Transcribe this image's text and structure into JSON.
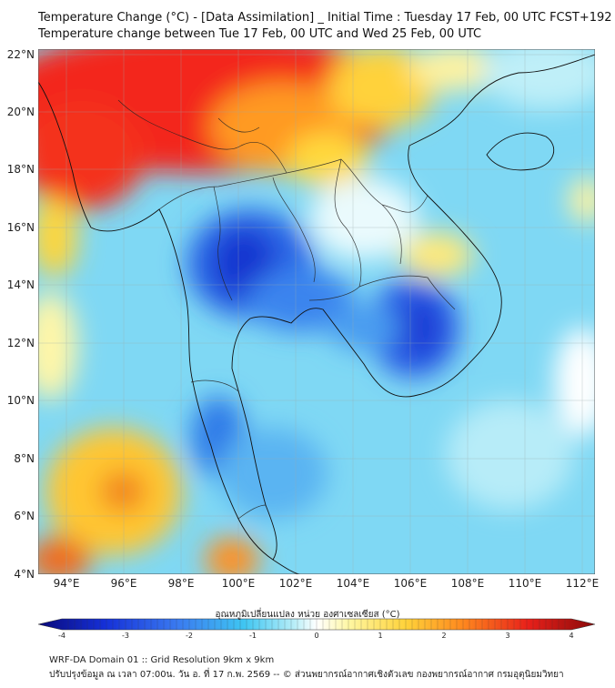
{
  "header": {
    "title_line1": "Temperature Change (°C) - [Data Assimilation] _ Initial Time : Tuesday 17 Feb, 00 UTC FCST+192",
    "title_line2": "Temperature change between Tue 17 Feb, 00 UTC and Wed 25 Feb, 00 UTC"
  },
  "map": {
    "lon_ticks": [
      "94°E",
      "96°E",
      "98°E",
      "100°E",
      "102°E",
      "104°E",
      "106°E",
      "108°E",
      "110°E",
      "112°E"
    ],
    "lat_ticks": [
      "22°N",
      "20°N",
      "18°N",
      "16°N",
      "14°N",
      "12°N",
      "10°N",
      "8°N",
      "6°N",
      "4°N"
    ],
    "lon_values": [
      94,
      96,
      98,
      100,
      102,
      104,
      106,
      108,
      110,
      112
    ],
    "lat_values": [
      22,
      20,
      18,
      16,
      14,
      12,
      10,
      8,
      6,
      4
    ],
    "lon_range": [
      93,
      112.5
    ],
    "lat_range": [
      4,
      22.2
    ]
  },
  "colorbar": {
    "title": "อุณหภูมิเปลี่ยนแปลง หน่วย องศาเซลเซียส (°C)",
    "labels": [
      "-4",
      "-3",
      "-2",
      "-1",
      "0",
      "1",
      "2",
      "3",
      "4"
    ],
    "min": -4,
    "max": 4,
    "colors": [
      "#0a0a7a",
      "#1530d8",
      "#3a7af0",
      "#3fc6f2",
      "#9ee6f6",
      "#ffffff",
      "#fff6a0",
      "#ffd23a",
      "#ff8a1e",
      "#e8201a",
      "#8a0a0a"
    ]
  },
  "footer": {
    "line1": "WRF-DA Domain 01 :: Grid Resolution 9km x 9km",
    "line2": "ปรับปรุงข้อมูล ณ เวลา 07:00น. วัน อ. ที่ 17 ก.พ. 2569 -- © ส่วนพยากรณ์อากาศเชิงตัวเลข กองพยากรณ์อากาศ กรมอุตุนิยมวิทยา"
  }
}
